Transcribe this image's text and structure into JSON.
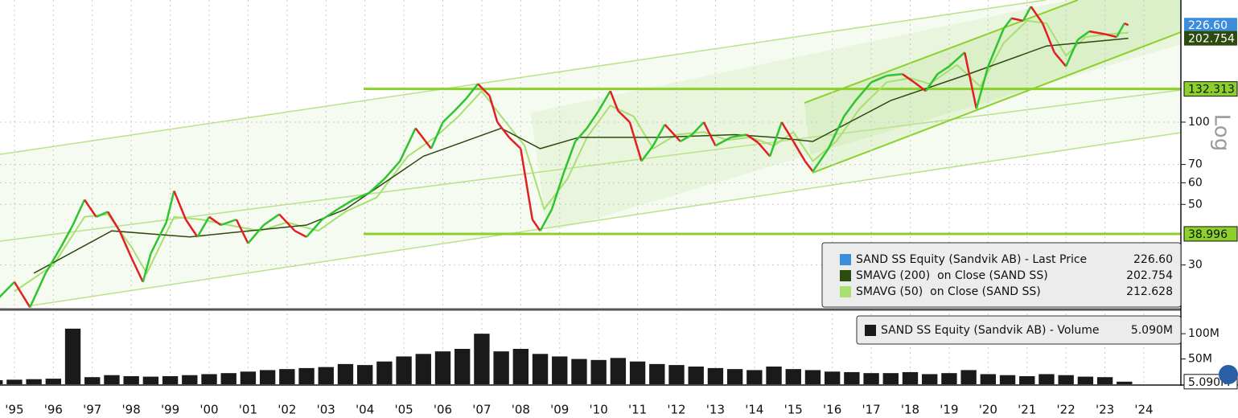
{
  "chart_data": [
    {
      "type": "line",
      "xlim": [
        1995.13,
        2025.45
      ],
      "xticks": [
        {
          "value": 1995.5,
          "label": "'95"
        },
        {
          "value": 1996.5,
          "label": "'96"
        },
        {
          "value": 1997.5,
          "label": "'97"
        },
        {
          "value": 1998.5,
          "label": "'98"
        },
        {
          "value": 1999.5,
          "label": "'99"
        },
        {
          "value": 2000.5,
          "label": "'00"
        },
        {
          "value": 2001.5,
          "label": "'01"
        },
        {
          "value": 2002.5,
          "label": "'02"
        },
        {
          "value": 2003.5,
          "label": "'03"
        },
        {
          "value": 2004.5,
          "label": "'04"
        },
        {
          "value": 2005.5,
          "label": "'05"
        },
        {
          "value": 2006.5,
          "label": "'06"
        },
        {
          "value": 2007.5,
          "label": "'07"
        },
        {
          "value": 2008.5,
          "label": "'08"
        },
        {
          "value": 2009.5,
          "label": "'09"
        },
        {
          "value": 2010.5,
          "label": "'10"
        },
        {
          "value": 2011.5,
          "label": "'11"
        },
        {
          "value": 2012.5,
          "label": "'12"
        },
        {
          "value": 2013.5,
          "label": "'13"
        },
        {
          "value": 2014.5,
          "label": "'14"
        },
        {
          "value": 2015.5,
          "label": "'15"
        },
        {
          "value": 2016.5,
          "label": "'16"
        },
        {
          "value": 2017.5,
          "label": "'17"
        },
        {
          "value": 2018.5,
          "label": "'18"
        },
        {
          "value": 2019.5,
          "label": "'19"
        },
        {
          "value": 2020.5,
          "label": "'20"
        },
        {
          "value": 2021.5,
          "label": "'21"
        },
        {
          "value": 2022.5,
          "label": "'22"
        },
        {
          "value": 2023.5,
          "label": "'23"
        },
        {
          "value": 2024.5,
          "label": "'24"
        }
      ],
      "log_scale": true,
      "axis_label": "Log",
      "ylim": [
        20.9,
        280
      ],
      "yticks": [
        30,
        50,
        60,
        70,
        100
      ],
      "grid": true,
      "legend_position": "lower right",
      "up_color": "#2fc42f",
      "down_color": "#e02020",
      "levels": [
        132.313,
        38.996
      ],
      "level_color": "#8cd12b",
      "series": [
        {
          "name": "SAND SS Equity (Sandvik AB) - Last Price",
          "color": "#3c8ddc",
          "last_value": {
            "value": 226.6,
            "label": "226.60"
          },
          "x": [
            1995.0,
            1995.5,
            1995.9,
            1996.3,
            1996.7,
            1997.0,
            1997.3,
            1997.6,
            1997.9,
            1998.2,
            1998.5,
            1998.8,
            1999.0,
            1999.4,
            1999.6,
            1999.9,
            2000.2,
            2000.5,
            2000.8,
            2001.2,
            2001.5,
            2001.9,
            2002.3,
            2002.7,
            2003.0,
            2003.4,
            2003.8,
            2004.2,
            2004.6,
            2005.0,
            2005.4,
            2005.8,
            2006.2,
            2006.5,
            2006.8,
            2007.1,
            2007.4,
            2007.7,
            2007.9,
            2008.2,
            2008.5,
            2008.8,
            2009.0,
            2009.3,
            2009.6,
            2009.9,
            2010.2,
            2010.5,
            2010.8,
            2011.0,
            2011.3,
            2011.6,
            2011.9,
            2012.2,
            2012.6,
            2012.9,
            2013.2,
            2013.5,
            2013.9,
            2014.3,
            2014.6,
            2014.9,
            2015.2,
            2015.5,
            2015.8,
            2016.0,
            2016.4,
            2016.8,
            2017.1,
            2017.5,
            2017.9,
            2018.3,
            2018.6,
            2018.9,
            2019.2,
            2019.5,
            2019.9,
            2020.2,
            2020.5,
            2020.9,
            2021.1,
            2021.4,
            2021.6,
            2021.9,
            2022.2,
            2022.5,
            2022.8,
            2023.1,
            2023.5,
            2023.8,
            2024.0,
            2024.1
          ],
          "values": [
            22,
            26,
            21,
            28,
            35,
            42,
            52,
            45,
            47,
            40,
            32,
            26,
            33,
            43,
            56,
            44,
            38,
            45,
            42,
            44,
            36,
            42,
            46,
            40,
            38,
            44,
            48,
            52,
            55,
            62,
            72,
            95,
            80,
            100,
            110,
            122,
            138,
            125,
            100,
            88,
            80,
            44,
            40,
            48,
            65,
            85,
            95,
            110,
            130,
            110,
            100,
            72,
            82,
            98,
            85,
            90,
            100,
            82,
            88,
            90,
            84,
            75,
            100,
            85,
            72,
            66,
            80,
            105,
            120,
            140,
            148,
            150,
            140,
            130,
            150,
            160,
            180,
            112,
            160,
            220,
            240,
            235,
            265,
            230,
            180,
            160,
            200,
            215,
            210,
            205,
            230,
            226.6
          ]
        },
        {
          "name": "SMAVG (200)  on Close (SAND SS)",
          "color": "#2d4a0f",
          "last_value": 202.754,
          "x": [
            1996.0,
            1998.0,
            2000.0,
            2003.0,
            2004.0,
            2006.0,
            2008.0,
            2009.0,
            2010.0,
            2012.0,
            2014.0,
            2015.0,
            2016.0,
            2018.0,
            2020.0,
            2022.0,
            2024.1
          ],
          "values": [
            28,
            40,
            38,
            42,
            48,
            75,
            95,
            80,
            88,
            88,
            90,
            88,
            85,
            120,
            150,
            190,
            202.754
          ]
        },
        {
          "name": "SMAVG (50)  on Close (SAND SS)",
          "color": "#a8e070",
          "last_value": 212.628,
          "x": [
            1995.5,
            1996.5,
            1997.3,
            1997.9,
            1998.5,
            1998.9,
            1999.6,
            2000.3,
            2001.0,
            2001.8,
            2002.5,
            2003.3,
            2004.0,
            2004.8,
            2005.6,
            2006.3,
            2006.9,
            2007.5,
            2008.0,
            2008.6,
            2009.1,
            2009.7,
            2010.2,
            2010.8,
            2011.4,
            2011.9,
            2012.5,
            2013.2,
            2013.8,
            2014.4,
            2015.0,
            2015.5,
            2016.0,
            2016.6,
            2017.2,
            2017.9,
            2018.5,
            2019.0,
            2019.7,
            2020.3,
            2020.9,
            2021.5,
            2022.0,
            2022.5,
            2023.0,
            2023.6,
            2024.1
          ],
          "values": [
            24,
            30,
            45,
            46,
            35,
            28,
            45,
            44,
            42,
            40,
            43,
            40,
            47,
            53,
            75,
            88,
            105,
            130,
            105,
            82,
            48,
            62,
            88,
            115,
            105,
            80,
            90,
            92,
            86,
            88,
            82,
            92,
            72,
            85,
            112,
            140,
            145,
            138,
            162,
            135,
            195,
            235,
            230,
            175,
            205,
            210,
            212.628
          ]
        }
      ]
    },
    {
      "type": "bar",
      "xlim": [
        1995.13,
        2025.45
      ],
      "ylim": [
        0,
        140
      ],
      "yticks": [
        {
          "value": 100,
          "label": "100M"
        },
        {
          "value": 50,
          "label": "50M"
        }
      ],
      "legend_position": "upper right",
      "series": [
        {
          "name": "SAND SS Equity (Sandvik AB) - Volume",
          "color": "#1a1a1a",
          "last_value": {
            "value": 5.09,
            "label": "5.090M"
          },
          "x": [
            1995.0,
            1995.5,
            1996.0,
            1996.5,
            1997.0,
            1997.5,
            1998.0,
            1998.5,
            1999.0,
            1999.5,
            2000.0,
            2000.5,
            2001.0,
            2001.5,
            2002.0,
            2002.5,
            2003.0,
            2003.5,
            2004.0,
            2004.5,
            2005.0,
            2005.5,
            2006.0,
            2006.5,
            2007.0,
            2007.5,
            2008.0,
            2008.5,
            2009.0,
            2009.5,
            2010.0,
            2010.5,
            2011.0,
            2011.5,
            2012.0,
            2012.5,
            2013.0,
            2013.5,
            2014.0,
            2014.5,
            2015.0,
            2015.5,
            2016.0,
            2016.5,
            2017.0,
            2017.5,
            2018.0,
            2018.5,
            2019.0,
            2019.5,
            2020.0,
            2020.5,
            2021.0,
            2021.5,
            2022.0,
            2022.5,
            2023.0,
            2023.5,
            2024.0
          ],
          "values": [
            8,
            9,
            10,
            11,
            110,
            14,
            18,
            16,
            15,
            16,
            18,
            20,
            22,
            25,
            28,
            30,
            32,
            34,
            40,
            38,
            45,
            55,
            60,
            65,
            70,
            100,
            65,
            70,
            60,
            55,
            50,
            48,
            52,
            45,
            40,
            38,
            35,
            32,
            30,
            28,
            35,
            30,
            28,
            25,
            24,
            22,
            22,
            24,
            20,
            22,
            28,
            20,
            18,
            16,
            20,
            18,
            15,
            14,
            5.09
          ]
        }
      ]
    }
  ]
}
